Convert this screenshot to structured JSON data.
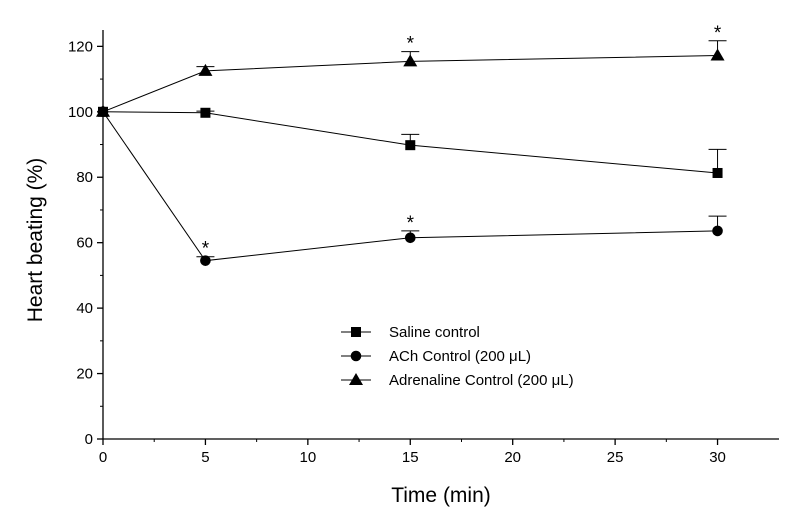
{
  "chart_data": {
    "type": "line",
    "xlabel": "Time (min)",
    "ylabel": "Heart beating (%)",
    "xlim": [
      0,
      33
    ],
    "ylim": [
      0,
      125
    ],
    "xticks": [
      0,
      5,
      10,
      15,
      20,
      25,
      30
    ],
    "yticks": [
      0,
      20,
      40,
      60,
      80,
      100,
      120
    ],
    "x": [
      0,
      5,
      15,
      30
    ],
    "legend_position": "lower-center",
    "series": [
      {
        "name": "Saline control",
        "marker": "square",
        "values": [
          100,
          99.7,
          89.8,
          81.3
        ],
        "error": [
          0,
          0.5,
          3.3,
          7.2
        ],
        "significance": [
          "",
          "",
          "",
          ""
        ]
      },
      {
        "name": "ACh Control (200 μL)",
        "marker": "circle",
        "values": [
          100,
          54.5,
          61.5,
          63.6
        ],
        "error": [
          0,
          1.2,
          2.1,
          4.5
        ],
        "significance": [
          "",
          "*",
          "*",
          ""
        ]
      },
      {
        "name": "Adrenaline Control (200 μL)",
        "marker": "triangle",
        "values": [
          100,
          112.5,
          115.4,
          117.2
        ],
        "error": [
          0,
          1.3,
          3.0,
          4.5
        ],
        "significance": [
          "",
          "",
          "*",
          "*"
        ]
      }
    ]
  }
}
